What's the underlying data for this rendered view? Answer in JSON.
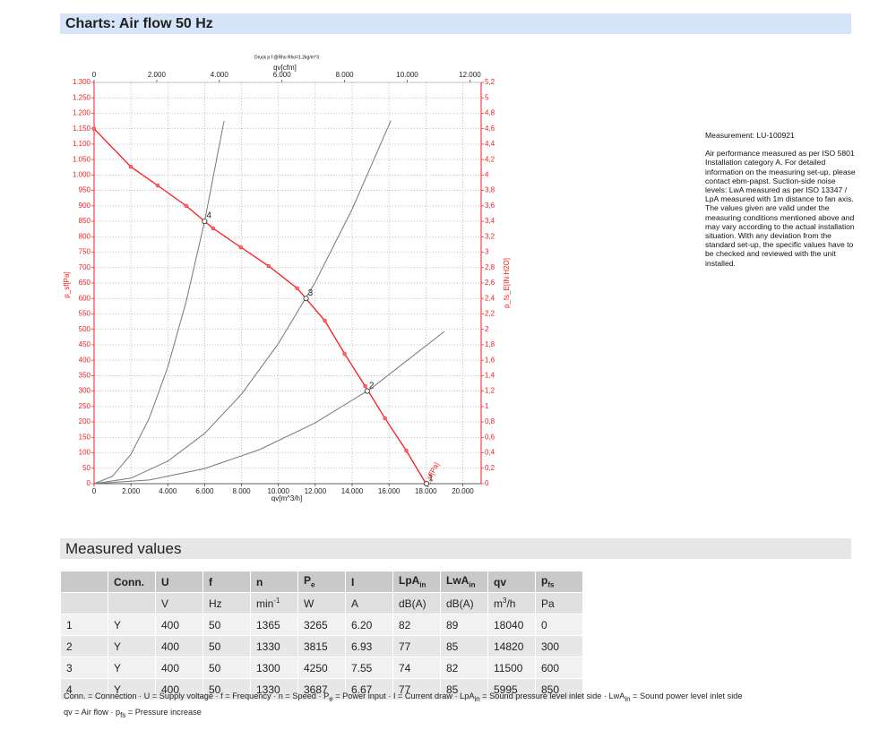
{
  "header": {
    "title": "Charts: Air flow 50 Hz"
  },
  "chart_data": {
    "type": "line",
    "title": "Druck p f @Rho Rho=1.2kg/m^3",
    "xlabel": "qv[m^3/h]",
    "x2label": "qv[cfm]",
    "ylabel": "p_sf[Pa]",
    "y2label": "p_fs_E[IN H2O]",
    "xlim": [
      0,
      21000
    ],
    "xticks": [
      0,
      {
        "value": 2000,
        "label": "2.000"
      },
      {
        "value": 4000,
        "label": "4.000"
      },
      {
        "value": 6000,
        "label": "6.000"
      },
      {
        "value": 8000,
        "label": "8.000"
      },
      {
        "value": 10000,
        "label": "10.000"
      },
      {
        "value": 12000,
        "label": "12.000"
      },
      {
        "value": 14000,
        "label": "14.000"
      },
      {
        "value": 16000,
        "label": "16.000"
      },
      {
        "value": 18000,
        "label": "18.000"
      },
      {
        "value": 20000,
        "label": "20.000"
      }
    ],
    "x2lim": [
      0,
      12360
    ],
    "x2ticks": [
      0,
      {
        "value": 2000,
        "label": "2.000"
      },
      {
        "value": 4000,
        "label": "4.000"
      },
      {
        "value": 6000,
        "label": "6.000"
      },
      {
        "value": 8000,
        "label": "8.000"
      },
      {
        "value": 10000,
        "label": "10.000"
      },
      {
        "value": 12000,
        "label": "12.000"
      }
    ],
    "ylim": [
      0,
      1300
    ],
    "yticks": [
      0,
      50,
      100,
      150,
      200,
      250,
      300,
      350,
      400,
      450,
      500,
      550,
      600,
      650,
      700,
      750,
      800,
      850,
      900,
      950,
      {
        "value": 1000,
        "label": "1.000"
      },
      {
        "value": 1050,
        "label": "1.050"
      },
      {
        "value": 1100,
        "label": "1.100"
      },
      {
        "value": 1150,
        "label": "1.150"
      },
      {
        "value": 1200,
        "label": "1.200"
      },
      {
        "value": 1250,
        "label": "1.250"
      },
      {
        "value": 1300,
        "label": "1.300"
      }
    ],
    "y2lim": [
      0,
      5.2
    ],
    "y2ticks": [
      0,
      {
        "value": 0.2,
        "label": "0,2"
      },
      {
        "value": 0.4,
        "label": "0,4"
      },
      {
        "value": 0.6,
        "label": "0,6"
      },
      {
        "value": 0.8,
        "label": "0,8"
      },
      1,
      {
        "value": 1.2,
        "label": "1,2"
      },
      {
        "value": 1.4,
        "label": "1,4"
      },
      {
        "value": 1.6,
        "label": "1,6"
      },
      {
        "value": 1.8,
        "label": "1,8"
      },
      2,
      {
        "value": 2.2,
        "label": "2,2"
      },
      {
        "value": 2.4,
        "label": "2,4"
      },
      {
        "value": 2.6,
        "label": "2,6"
      },
      {
        "value": 2.8,
        "label": "2,8"
      },
      3,
      {
        "value": 3.2,
        "label": "3,2"
      },
      {
        "value": 3.4,
        "label": "3,4"
      },
      {
        "value": 3.6,
        "label": "3,6"
      },
      {
        "value": 3.8,
        "label": "3,8"
      },
      4,
      {
        "value": 4.2,
        "label": "4,2"
      },
      {
        "value": 4.4,
        "label": "4,4"
      },
      {
        "value": 4.6,
        "label": "4,6"
      },
      {
        "value": 4.8,
        "label": "4,8"
      },
      5,
      {
        "value": 5.2,
        "label": "5,2"
      }
    ],
    "grid": true,
    "series": [
      {
        "name": "p_sf[Pa]",
        "color": "#ff1a1a",
        "markers": true,
        "x": [
          0,
          1990,
          3450,
          5000,
          6460,
          7960,
          9470,
          11020,
          12520,
          13590,
          14710,
          15780,
          16940,
          18010
        ],
        "values": [
          1150,
          1027,
          966,
          900,
          827,
          766,
          705,
          633,
          528,
          421,
          316,
          212,
          107,
          0
        ]
      },
      {
        "color": "#777777",
        "markers": false,
        "x": [
          0,
          1000,
          2000,
          3000,
          4000,
          5000,
          6000,
          7050
        ],
        "values": [
          0,
          24,
          95,
          213,
          378,
          591,
          851,
          1175
        ]
      },
      {
        "color": "#777777",
        "markers": false,
        "x": [
          0,
          2000,
          4000,
          6000,
          8000,
          10000,
          12000,
          14000,
          16100
        ],
        "values": [
          0,
          18,
          73,
          163,
          290,
          454,
          653,
          889,
          1176
        ]
      },
      {
        "color": "#777777",
        "markers": false,
        "x": [
          0,
          3000,
          6000,
          9000,
          12000,
          15000,
          19000
        ],
        "values": [
          0,
          12,
          49,
          111,
          197,
          307,
          493
        ]
      }
    ],
    "points": [
      {
        "label": "1",
        "x": 18040,
        "y": 0
      },
      {
        "label": "2",
        "x": 14820,
        "y": 300
      },
      {
        "label": "3",
        "x": 11500,
        "y": 600
      },
      {
        "label": "4",
        "x": 5995,
        "y": 850
      }
    ]
  },
  "note": {
    "measurement": "Measurement: LU-100921",
    "text": "Air performance measured as per ISO 5801 Installation category A. For detailed information on the measuring set-up, please contact ebm-papst. Suction-side noise levels: LwA measured as per ISO 13347 / LpA measured with 1m distance to fan axis. The values given are valid under the measuring conditions mentioned above and may vary according to the actual installation situation. With any deviation from the standard set-up, the specific values have to be checked and reviewed with the unit installed."
  },
  "table": {
    "title": "Measured values",
    "header": [
      null,
      "Conn.",
      "U",
      "f",
      "n",
      {
        "text": "P",
        "sub": "e"
      },
      "I",
      {
        "text": "LpA",
        "sub": "in"
      },
      {
        "text": "LwA",
        "sub": "in"
      },
      "qv",
      {
        "text": "p",
        "sub": "fs"
      }
    ],
    "units": [
      null,
      null,
      "V",
      "Hz",
      {
        "text": "min",
        "sup": "-1"
      },
      "W",
      "A",
      "dB(A)",
      "dB(A)",
      {
        "text": "m",
        "sup": "3",
        "rest": "/h"
      },
      "Pa"
    ],
    "rows": [
      [
        "1",
        "Y",
        "400",
        "50",
        "1365",
        "3265",
        "6.20",
        "82",
        "89",
        "18040",
        "0"
      ],
      [
        "2",
        "Y",
        "400",
        "50",
        "1330",
        "3815",
        "6.93",
        "77",
        "85",
        "14820",
        "300"
      ],
      [
        "3",
        "Y",
        "400",
        "50",
        "1300",
        "4250",
        "7.55",
        "74",
        "82",
        "11500",
        "600"
      ],
      [
        "4",
        "Y",
        "400",
        "50",
        "1330",
        "3687",
        "6.67",
        "77",
        "85",
        "5995",
        "850"
      ]
    ]
  },
  "footnotes": [
    [
      "Conn. = Connection · U = Supply voltage · f = Frequency · n = Speed · P",
      "e",
      " = Power input · I = Current draw · LpA",
      "in",
      " = Sound pressure level inlet side · LwA",
      "in",
      " = Sound power level inlet side"
    ],
    [
      "qv = Air flow · p",
      "fs",
      " = Pressure increase"
    ]
  ]
}
